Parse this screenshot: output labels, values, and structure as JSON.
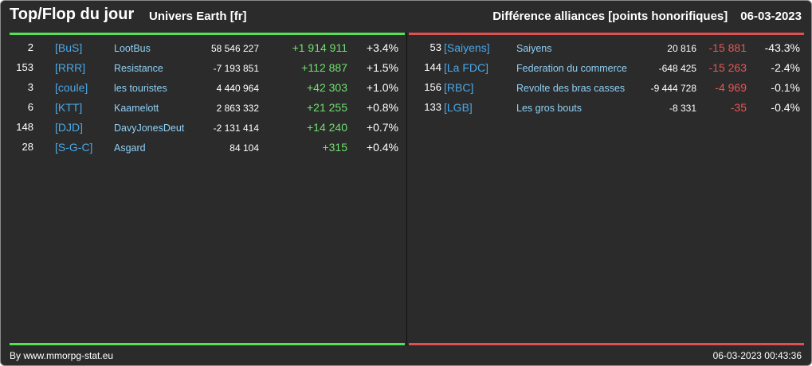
{
  "header": {
    "title": "Top/Flop du jour",
    "subtitle": "Univers Earth [fr]",
    "category": "Différence alliances [points honorifiques]",
    "date": "06-03-2023"
  },
  "top": [
    {
      "rank": "2",
      "tag": "[BuS]",
      "name": "LootBus",
      "points": "58 546 227",
      "diff": "+1 914 911",
      "pct": "+3.4%"
    },
    {
      "rank": "153",
      "tag": "[RRR]",
      "name": "Resistance",
      "points": "-7 193 851",
      "diff": "+112 887",
      "pct": "+1.5%"
    },
    {
      "rank": "3",
      "tag": "[coule]",
      "name": "les touristes",
      "points": "4 440 964",
      "diff": "+42 303",
      "pct": "+1.0%"
    },
    {
      "rank": "6",
      "tag": "[KTT]",
      "name": "Kaamelott",
      "points": "2 863 332",
      "diff": "+21 255",
      "pct": "+0.8%"
    },
    {
      "rank": "148",
      "tag": "[DJD]",
      "name": "DavyJonesDeut",
      "points": "-2 131 414",
      "diff": "+14 240",
      "pct": "+0.7%"
    },
    {
      "rank": "28",
      "tag": "[S-G-C]",
      "name": "Asgard",
      "points": "84 104",
      "diff": "+315",
      "pct": "+0.4%"
    }
  ],
  "flop": [
    {
      "rank": "53",
      "tag": "[Saiyens]",
      "name": "Saiyens",
      "points": "20 816",
      "diff": "-15 881",
      "pct": "-43.3%"
    },
    {
      "rank": "144",
      "tag": "[La FDC]",
      "name": "Federation du commerce",
      "points": "-648 425",
      "diff": "-15 263",
      "pct": "-2.4%"
    },
    {
      "rank": "156",
      "tag": "[RBC]",
      "name": "Revolte des bras casses",
      "points": "-9 444 728",
      "diff": "-4 969",
      "pct": "-0.1%"
    },
    {
      "rank": "133",
      "tag": "[LGB]",
      "name": "Les gros bouts",
      "points": "-8 331",
      "diff": "-35",
      "pct": "-0.4%"
    }
  ],
  "footer": {
    "source": "By www.mmorpg-stat.eu",
    "timestamp": "06-03-2023 00:43:36"
  },
  "colors": {
    "background": "#2b2b2b",
    "positive": "#6fe06f",
    "negative": "#e85555",
    "tag": "#4aa8e8",
    "name": "#8fd0f5"
  }
}
